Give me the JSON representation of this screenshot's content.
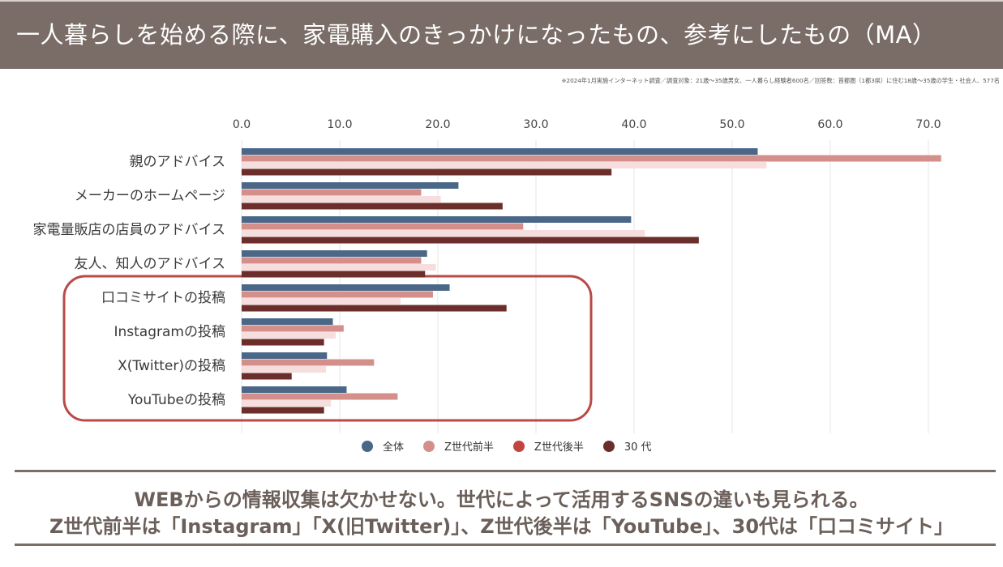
{
  "header": {
    "title": "一人暮らしを始める際に、家電購入のきっかけになったもの、参考にしたもの（MA）"
  },
  "footnote": "※2024年1月実施インターネット調査／調査対象：21歳～35歳男女、一人暮らし経験者600名／回答数：首都圏（1都3県）に住む18歳～35歳の学生・社会人、577名",
  "chart_data": {
    "type": "bar",
    "orientation": "horizontal",
    "title": "一人暮らしを始める際に、家電購入のきっかけになったもの、参考にしたもの（MA）",
    "xlabel": "",
    "ylabel": "",
    "xlim": [
      0,
      70
    ],
    "ticks": [
      "0.0",
      "10.0",
      "20.0",
      "30.0",
      "40.0",
      "50.0",
      "60.0",
      "70.0"
    ],
    "tick_values": [
      0,
      10,
      20,
      30,
      40,
      50,
      60,
      70
    ],
    "grid": true,
    "axis_position": "top",
    "legend_position": "bottom",
    "categories": [
      "親のアドバイス",
      "メーカーのホームページ",
      "家電量販店の店員のアドバイス",
      "友人、知人のアドバイス",
      "口コミサイトの投稿",
      "Instagramの投稿",
      "X(Twitter)の投稿",
      "YouTubeの投稿"
    ],
    "series": [
      {
        "name": "全体",
        "bar_color": "#4a6788",
        "legend_color": "#4a6788",
        "values": [
          52.6,
          22.1,
          39.7,
          18.9,
          21.2,
          9.3,
          8.7,
          10.7
        ]
      },
      {
        "name": "Z世代前半",
        "bar_color": "#d58f8a",
        "legend_color": "#d58f8a",
        "values": [
          71.3,
          18.3,
          28.7,
          18.3,
          19.5,
          10.4,
          13.5,
          15.9
        ]
      },
      {
        "name": "Z世代後半",
        "bar_color": "#f6dede",
        "legend_color": "#c04540",
        "values": [
          53.5,
          20.3,
          41.1,
          19.8,
          16.2,
          9.6,
          8.6,
          9.1
        ]
      },
      {
        "name": "30 代",
        "bar_color": "#6b2e2b",
        "legend_color": "#6b2e2b",
        "values": [
          37.7,
          26.6,
          46.6,
          18.7,
          27.0,
          8.4,
          5.1,
          8.4
        ]
      }
    ],
    "highlight": {
      "categories": [
        "口コミサイトの投稿",
        "Instagramの投稿",
        "X(Twitter)の投稿",
        "YouTubeの投稿"
      ],
      "color": "#b94a47"
    }
  },
  "conclusion": {
    "line1": "WEBからの情報収集は欠かせない。世代によって活用するSNSの違いも見られる。",
    "line2": "Z世代前半は「Instagram」「X(旧Twitter)」、Z世代後半は「YouTube」、30代は「口コミサイト」"
  }
}
